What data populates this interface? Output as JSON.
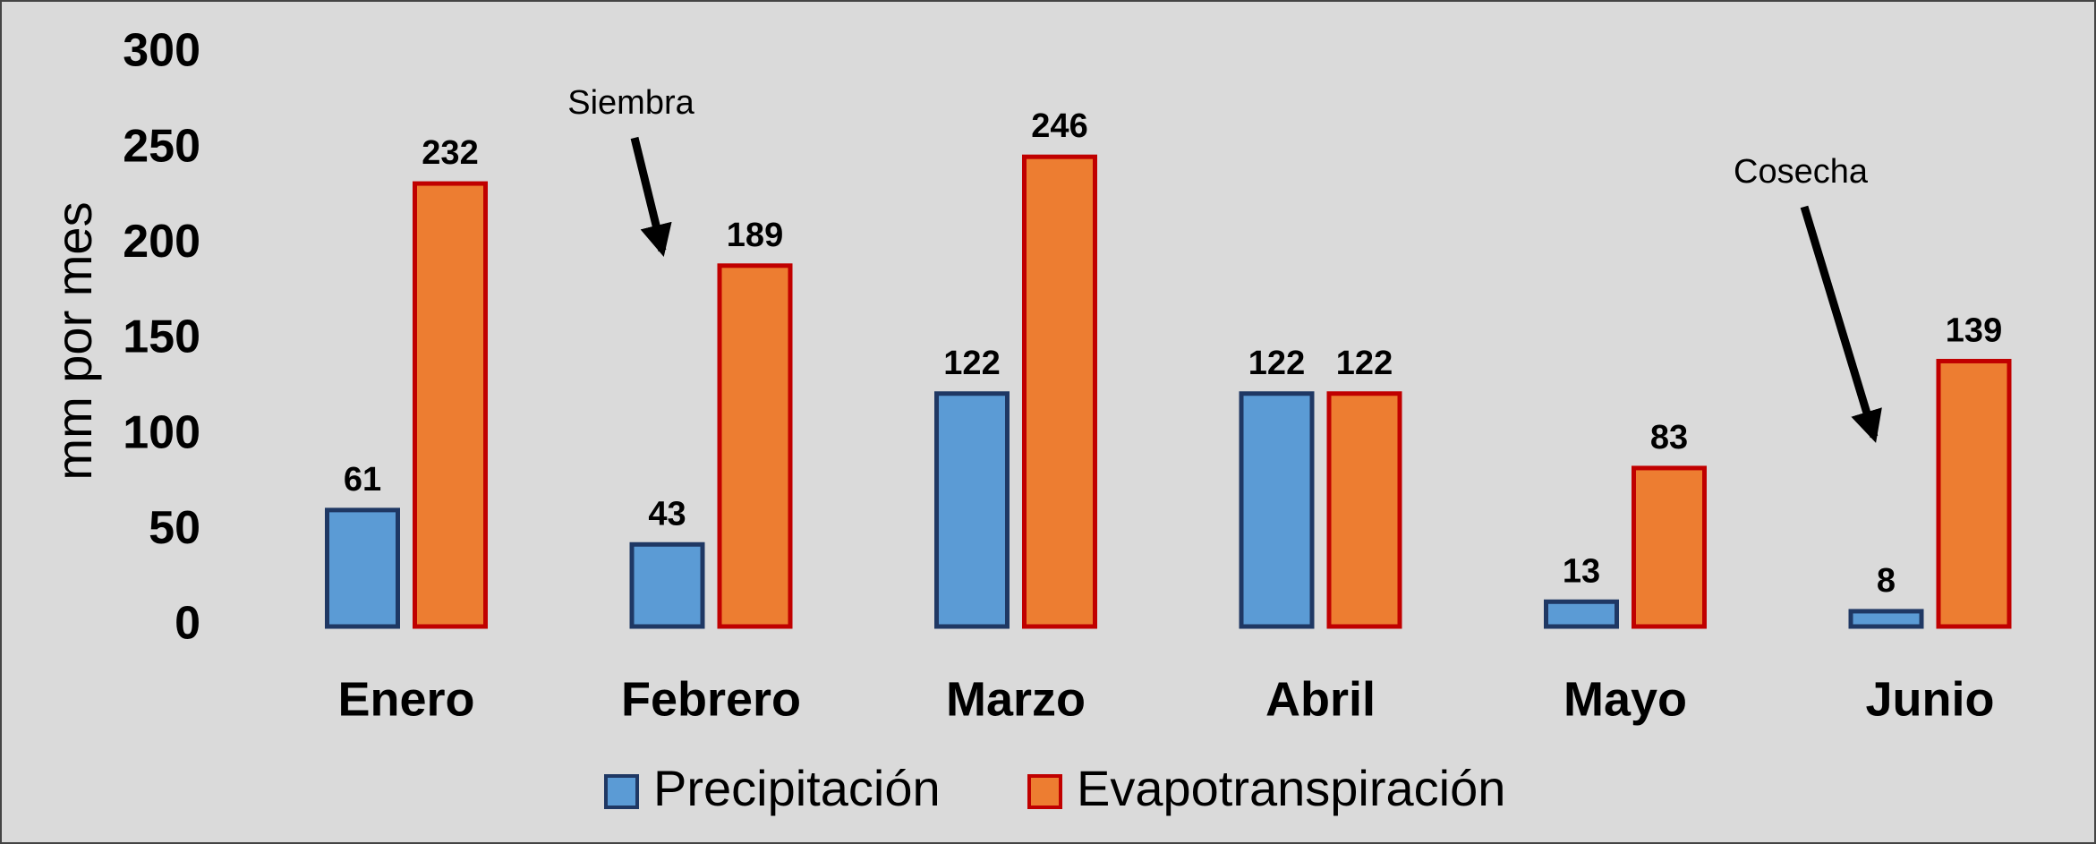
{
  "chart_data": {
    "type": "bar",
    "ylabel": "mm por mes",
    "categories": [
      "Enero",
      "Febrero",
      "Marzo",
      "Abril",
      "Mayo",
      "Junio"
    ],
    "series": [
      {
        "name": "Precipitación",
        "color": "#5b9bd5",
        "edge": "#1f3864",
        "values": [
          61,
          43,
          122,
          122,
          13,
          8
        ]
      },
      {
        "name": "Evapotranspiración",
        "color": "#ed7d31",
        "edge": "#c00000",
        "values": [
          232,
          189,
          246,
          122,
          83,
          139
        ]
      }
    ],
    "ylim": [
      0,
      300
    ],
    "yticks": [
      0,
      50,
      100,
      150,
      200,
      250,
      300
    ],
    "annotations": [
      "Siembra",
      "Cosecha"
    ]
  }
}
